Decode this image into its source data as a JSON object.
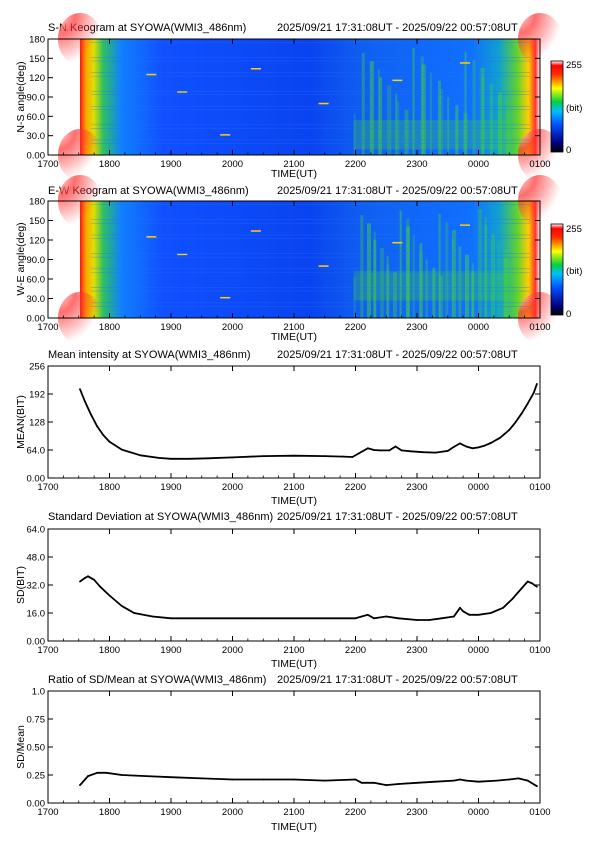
{
  "time_range": "2025/09/21 17:31:08UT - 2025/09/22 00:57:08UT",
  "colors": {
    "keogram_low": "#000080",
    "keogram_mid": "#2060ff",
    "keogram_aurora": "#40d040",
    "keogram_high": "#ff2020",
    "line": "#000000"
  },
  "colorbar": {
    "max_label": "255",
    "unit_label": "(bit)",
    "min_label": "0"
  },
  "chart_data": [
    {
      "type": "heatmap",
      "title": "S-N Keogram at SYOWA(WMI3_486nm)",
      "xlabel": "TIME(UT)",
      "ylabel": "N-S angle(deg)",
      "x_ticks": [
        "1700",
        "1800",
        "1900",
        "2000",
        "2100",
        "2200",
        "2300",
        "0000",
        "0100"
      ],
      "y_ticks": [
        "0.00",
        "30.0",
        "60.0",
        "90.0",
        "120",
        "150",
        "180"
      ],
      "ylim": [
        0,
        180
      ],
      "color_range": [
        0,
        255
      ],
      "colorbar_unit": "bit",
      "colormap": "rainbow",
      "description_values": {
        "background_level": 40,
        "edge_level_start": 255,
        "edge_level_end": 255,
        "aurora_onset_time": "2158"
      }
    },
    {
      "type": "heatmap",
      "title": "E-W Keogram at SYOWA(WMI3_486nm)",
      "xlabel": "TIME(UT)",
      "ylabel": "W-E angle(deg)",
      "x_ticks": [
        "1700",
        "1800",
        "1900",
        "2000",
        "2100",
        "2200",
        "2300",
        "0000",
        "0100"
      ],
      "y_ticks": [
        "0.00",
        "30.0",
        "60.0",
        "90.0",
        "120",
        "150",
        "180"
      ],
      "ylim": [
        0,
        180
      ],
      "color_range": [
        0,
        255
      ],
      "colorbar_unit": "bit",
      "colormap": "rainbow",
      "description_values": {
        "background_level": 40,
        "edge_level_start": 255,
        "edge_level_end": 255,
        "aurora_onset_time": "2158"
      }
    },
    {
      "type": "line",
      "title": "Mean intensity at SYOWA(WMI3_486nm)",
      "xlabel": "TIME(UT)",
      "ylabel": "MEAN(BIT)",
      "x_ticks": [
        "1700",
        "1800",
        "1900",
        "2000",
        "2100",
        "2200",
        "2300",
        "0000",
        "0100"
      ],
      "y_ticks": [
        "0.00",
        "64.0",
        "128",
        "192",
        "256"
      ],
      "ylim": [
        0,
        256
      ],
      "x_hours": [
        17.52,
        17.6,
        17.7,
        17.8,
        17.9,
        18.0,
        18.2,
        18.5,
        18.8,
        19.0,
        19.3,
        19.6,
        20.0,
        20.5,
        21.0,
        21.5,
        21.8,
        21.95,
        22.05,
        22.2,
        22.3,
        22.4,
        22.55,
        22.65,
        22.75,
        22.9,
        23.1,
        23.3,
        23.5,
        23.6,
        23.7,
        23.8,
        23.9,
        24.0,
        24.1,
        24.2,
        24.35,
        24.5,
        24.6,
        24.7,
        24.8,
        24.9,
        24.95
      ],
      "values": [
        203,
        175,
        145,
        118,
        98,
        83,
        65,
        52,
        46,
        44,
        44,
        45,
        47,
        50,
        51,
        50,
        49,
        48,
        56,
        68,
        64,
        63,
        63,
        72,
        63,
        61,
        59,
        58,
        62,
        71,
        79,
        72,
        68,
        70,
        74,
        80,
        92,
        110,
        127,
        147,
        170,
        195,
        215
      ]
    },
    {
      "type": "line",
      "title": "Standard Deviation at SYOWA(WMI3_486nm)",
      "xlabel": "TIME(UT)",
      "ylabel": "SD(BIT)",
      "x_ticks": [
        "1700",
        "1800",
        "1900",
        "2000",
        "2100",
        "2200",
        "2300",
        "0000",
        "0100"
      ],
      "y_ticks": [
        "0.00",
        "16.0",
        "32.0",
        "48.0",
        "64.0"
      ],
      "ylim": [
        0,
        64
      ],
      "x_hours": [
        17.52,
        17.6,
        17.65,
        17.75,
        17.85,
        18.0,
        18.2,
        18.4,
        18.7,
        19.0,
        19.5,
        20.0,
        20.5,
        21.0,
        21.5,
        22.0,
        22.1,
        22.2,
        22.3,
        22.5,
        22.7,
        23.0,
        23.2,
        23.4,
        23.6,
        23.7,
        23.75,
        23.85,
        24.0,
        24.2,
        24.4,
        24.55,
        24.7,
        24.8,
        24.87,
        24.95
      ],
      "values": [
        34,
        36,
        37,
        35,
        31,
        26,
        20,
        16,
        14,
        13,
        13,
        13,
        13,
        13,
        13,
        13,
        14,
        15,
        13,
        14,
        13,
        12,
        12,
        13,
        14,
        19,
        17,
        15,
        15,
        16,
        19,
        24,
        30,
        34,
        33,
        31
      ]
    },
    {
      "type": "line",
      "title": "Ratio of SD/Mean at SYOWA(WMI3_486nm)",
      "xlabel": "TIME(UT)",
      "ylabel": "SD/Mean",
      "x_ticks": [
        "1700",
        "1800",
        "1900",
        "2000",
        "2100",
        "2200",
        "2300",
        "0000",
        "0100"
      ],
      "y_ticks": [
        "0.00",
        "0.25",
        "0.50",
        "0.75",
        "1.0"
      ],
      "ylim": [
        0,
        1
      ],
      "x_hours": [
        17.52,
        17.65,
        17.8,
        17.95,
        18.2,
        18.6,
        19.0,
        19.5,
        20.0,
        20.5,
        21.0,
        21.5,
        22.0,
        22.1,
        22.3,
        22.5,
        22.7,
        23.0,
        23.3,
        23.6,
        23.7,
        23.8,
        24.0,
        24.3,
        24.5,
        24.65,
        24.8,
        24.95
      ],
      "values": [
        0.16,
        0.24,
        0.27,
        0.27,
        0.25,
        0.24,
        0.23,
        0.22,
        0.21,
        0.21,
        0.21,
        0.2,
        0.21,
        0.18,
        0.18,
        0.16,
        0.17,
        0.18,
        0.19,
        0.2,
        0.21,
        0.2,
        0.19,
        0.2,
        0.21,
        0.22,
        0.2,
        0.15
      ]
    }
  ]
}
